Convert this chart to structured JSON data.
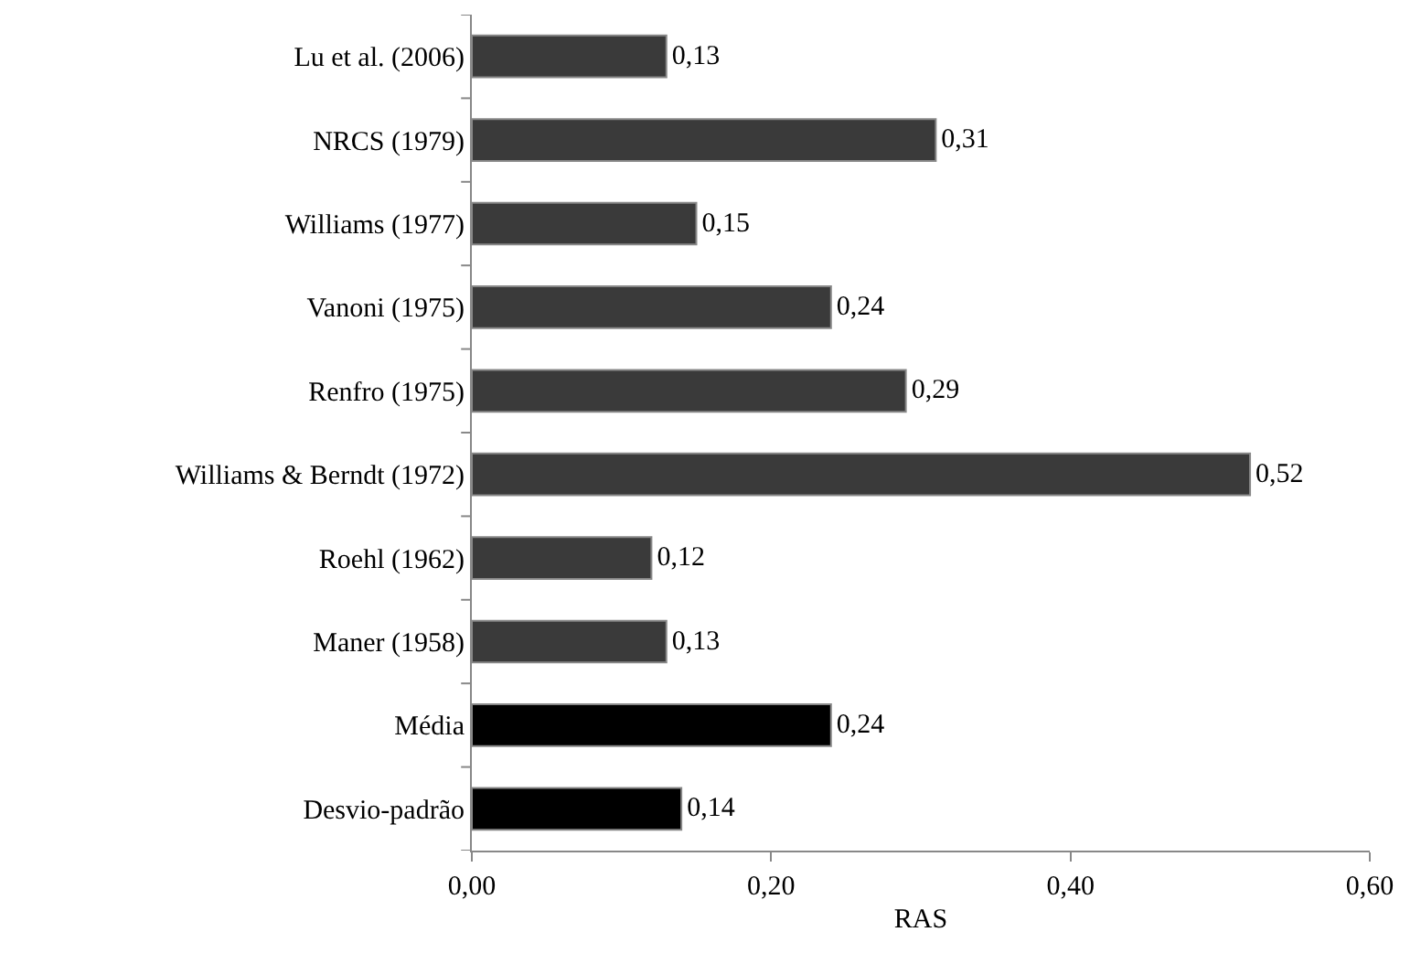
{
  "chart_data": {
    "type": "bar",
    "orientation": "horizontal",
    "xlabel": "RAS",
    "categories": [
      "Lu et al. (2006)",
      "NRCS (1979)",
      "Williams (1977)",
      "Vanoni (1975)",
      "Renfro (1975)",
      "Williams & Berndt (1972)",
      "Roehl (1962)",
      "Maner (1958)",
      "Média",
      "Desvio-padrão"
    ],
    "values": [
      0.13,
      0.31,
      0.15,
      0.24,
      0.29,
      0.52,
      0.12,
      0.13,
      0.24,
      0.14
    ],
    "value_labels": [
      "0,13",
      "0,31",
      "0,15",
      "0,24",
      "0,29",
      "0,52",
      "0,12",
      "0,13",
      "0,24",
      "0,14"
    ],
    "colors": [
      "#3a3a3a",
      "#3a3a3a",
      "#3a3a3a",
      "#3a3a3a",
      "#3a3a3a",
      "#3a3a3a",
      "#3a3a3a",
      "#3a3a3a",
      "#000000",
      "#000000"
    ],
    "xlim": [
      0,
      0.6
    ],
    "xticks": [
      {
        "value": 0,
        "label": "0,00"
      },
      {
        "value": 0.2,
        "label": "0,20"
      },
      {
        "value": 0.4,
        "label": "0,40"
      },
      {
        "value": 0.6,
        "label": "0,60"
      }
    ],
    "grid": false
  }
}
